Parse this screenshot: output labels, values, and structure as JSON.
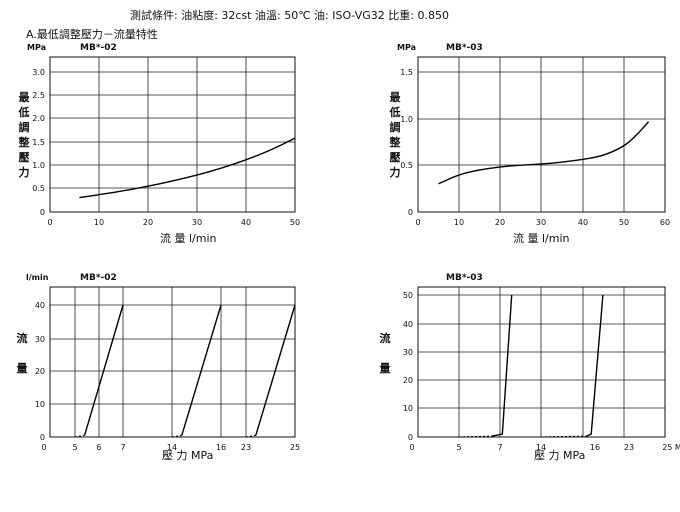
{
  "header": {
    "conditions": "測試條件:  油粘度:  32cst   油溫:  50℃   油:  ISO-VG32   比重:  0.850",
    "section_title": "A.最低調整壓力－流量特性"
  },
  "chart_data": [
    {
      "type": "line",
      "model": "MB*-02",
      "yunit": "MPa",
      "ylabel": "最低調整壓力",
      "xlabel": "流 量  l/min",
      "xticks": [
        "0",
        "10",
        "20",
        "30",
        "40",
        "50"
      ],
      "yticks": [
        "0",
        "0.5",
        "1.0",
        "1.5",
        "2.0",
        "2.5",
        "3.0"
      ],
      "xlim": [
        0,
        50
      ],
      "ylim": [
        0,
        3.2
      ],
      "series": [
        {
          "x": [
            6,
            10,
            15,
            20,
            25,
            30,
            35,
            40,
            45,
            50
          ],
          "y": [
            0.3,
            0.36,
            0.44,
            0.54,
            0.65,
            0.78,
            0.93,
            1.11,
            1.32,
            1.58
          ],
          "style": "solid"
        }
      ]
    },
    {
      "type": "line",
      "model": "MB*-03",
      "yunit": "MPa",
      "ylabel": "最低調整壓力",
      "xlabel": "流 量  l/min",
      "xticks": [
        "0",
        "10",
        "20",
        "30",
        "40",
        "50",
        "60"
      ],
      "yticks": [
        "0",
        "0.5",
        "1.0",
        "1.5"
      ],
      "xlim": [
        0,
        60
      ],
      "ylim": [
        0,
        1.5
      ],
      "series": [
        {
          "x": [
            5,
            10,
            15,
            20,
            25,
            30,
            35,
            40,
            45,
            50,
            53,
            56
          ],
          "y": [
            0.3,
            0.4,
            0.45,
            0.48,
            0.5,
            0.51,
            0.53,
            0.56,
            0.6,
            0.7,
            0.82,
            0.97
          ],
          "style": "solid"
        }
      ]
    },
    {
      "type": "line",
      "model": "MB*-02",
      "yunit": "l/min",
      "ylabel": "流量",
      "xlabel": "壓 力 MPa",
      "xticks": [
        "0",
        "5",
        "6",
        "7",
        "14",
        "16",
        "23",
        "25"
      ],
      "yticks": [
        "0",
        "10",
        "20",
        "30",
        "40"
      ],
      "ylim": [
        0,
        43
      ],
      "series": [
        {
          "x": [
            5,
            5.4
          ],
          "y": [
            0,
            0.5
          ],
          "style": "dashed"
        },
        {
          "x": [
            5.4,
            7
          ],
          "y": [
            0.5,
            40
          ],
          "style": "solid"
        },
        {
          "x": [
            14,
            14.4
          ],
          "y": [
            0,
            0.5
          ],
          "style": "dashed"
        },
        {
          "x": [
            14.4,
            16
          ],
          "y": [
            0.5,
            40
          ],
          "style": "solid"
        },
        {
          "x": [
            23,
            23.4
          ],
          "y": [
            0,
            0.5
          ],
          "style": "dashed"
        },
        {
          "x": [
            23.4,
            25
          ],
          "y": [
            0.5,
            40
          ],
          "style": "solid"
        }
      ]
    },
    {
      "type": "line",
      "model": "MB*-03",
      "yunit": "l/min",
      "ylabel": "流量",
      "xlabel": "壓 力  MPa",
      "xticks": [
        "0",
        "5",
        "7",
        "14",
        "16",
        "23",
        "25 M"
      ],
      "yticks": [
        "0",
        "10",
        "20",
        "30",
        "40",
        "50"
      ],
      "ylim": [
        0,
        53
      ],
      "series": [
        {
          "x": [
            5,
            6.6
          ],
          "y": [
            0,
            0.3
          ],
          "style": "dashed"
        },
        {
          "x": [
            6.6,
            7.4,
            9
          ],
          "y": [
            0.3,
            1,
            50
          ],
          "style": "solid"
        },
        {
          "x": [
            14,
            16.6
          ],
          "y": [
            0,
            0.3
          ],
          "style": "dashed"
        },
        {
          "x": [
            16.6,
            17.4,
            19.4
          ],
          "y": [
            0.3,
            1,
            50
          ],
          "style": "solid"
        }
      ]
    }
  ]
}
